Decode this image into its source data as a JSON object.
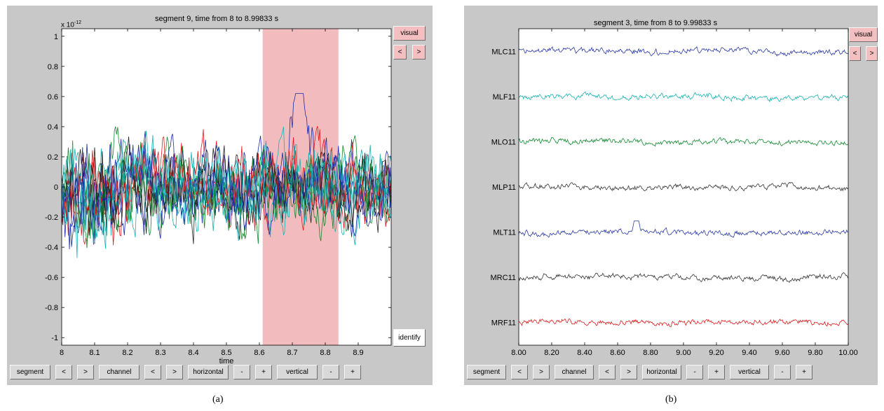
{
  "figure_a": {
    "title": "segment 9, time from 8 to 8.99833 s",
    "exponent_base": "x 10",
    "exponent_power": "-12",
    "caption": "(a)",
    "visual_label": "visual",
    "prev_label": "<",
    "next_label": ">",
    "identify_label": "identify",
    "bottom_buttons": [
      "segment",
      "<",
      ">",
      "channel",
      "<",
      ">",
      "horizontal",
      "-",
      "+",
      "vertical",
      "-",
      "+"
    ],
    "chart_data": {
      "type": "line",
      "xlabel": "time",
      "xlim": [
        8,
        9
      ],
      "ylim": [
        -1.05,
        1.05
      ],
      "xticks": [
        "8",
        "8.1",
        "8.2",
        "8.3",
        "8.4",
        "8.5",
        "8.6",
        "8.7",
        "8.8",
        "8.9"
      ],
      "yticks": [
        "1",
        "0.8",
        "0.6",
        "0.4",
        "0.2",
        "0",
        "-0.2",
        "-0.4",
        "-0.6",
        "-0.8",
        "-1"
      ],
      "highlight_range": [
        8.61,
        8.84
      ],
      "highlight_color": "#f2bcbe",
      "series_colors": [
        "#1a2aa6",
        "#19b3b3",
        "#138a2f",
        "#e0191c",
        "#222222"
      ],
      "series_count": 12
    }
  },
  "figure_b": {
    "title": "segment 3, time from 8 to 9.99833 s",
    "caption": "(b)",
    "visual_label": "visual",
    "prev_label": "<",
    "next_label": ">",
    "bottom_buttons": [
      "segment",
      "<",
      ">",
      "channel",
      "<",
      ">",
      "horizontal",
      "-",
      "+",
      "vertical",
      "-",
      "+"
    ],
    "chart_data": {
      "type": "line",
      "xlim": [
        8,
        10
      ],
      "xticks": [
        "8.00",
        "8.20",
        "8.40",
        "8.60",
        "8.80",
        "9.00",
        "9.20",
        "9.40",
        "9.60",
        "9.80",
        "10.00"
      ],
      "series": [
        {
          "name": "MLC11",
          "color": "#2b3aa8"
        },
        {
          "name": "MLF11",
          "color": "#19b3b3"
        },
        {
          "name": "MLO11",
          "color": "#138a2f"
        },
        {
          "name": "MLP11",
          "color": "#333333"
        },
        {
          "name": "MLT11",
          "color": "#2b3aa8"
        },
        {
          "name": "MRC11",
          "color": "#333333"
        },
        {
          "name": "MRF11",
          "color": "#e0191c"
        }
      ]
    }
  }
}
